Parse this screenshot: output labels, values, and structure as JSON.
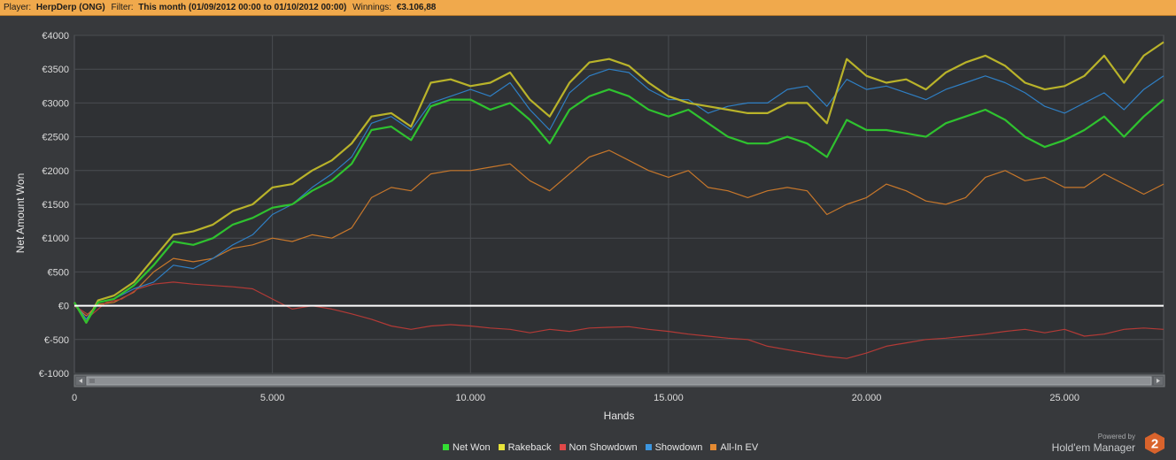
{
  "header": {
    "player_label": "Player:",
    "player_value": "HerpDerp (ONG)",
    "filter_label": "Filter:",
    "filter_value": "This month (01/09/2012 00:00 to 01/10/2012 00:00)",
    "winnings_label": "Winnings:",
    "winnings_value": "€3.106,88"
  },
  "chart_data": {
    "type": "line",
    "xlabel": "Hands",
    "ylabel": "Net Amount Won",
    "xlim": [
      0,
      27500
    ],
    "ylim": [
      -1000,
      4000
    ],
    "xticks": [
      0,
      5000,
      10000,
      15000,
      20000,
      25000
    ],
    "xtick_labels": [
      "0",
      "5.000",
      "10.000",
      "15.000",
      "20.000",
      "25.000"
    ],
    "yticks": [
      4000,
      3500,
      3000,
      2500,
      2000,
      1500,
      1000,
      500,
      0,
      -500,
      -1000
    ],
    "ytick_labels": [
      "€4000",
      "€3500",
      "€3000",
      "€2500",
      "€2000",
      "€1500",
      "€1000",
      "€500",
      "€0",
      "€-500",
      "€-1000"
    ],
    "grid": true,
    "legend_position": "bottom",
    "series": [
      {
        "name": "Net Won",
        "color": "#2fc22f",
        "x": [
          0,
          300,
          600,
          1000,
          1500,
          2000,
          2500,
          3000,
          3500,
          4000,
          4500,
          5000,
          5500,
          6000,
          6500,
          7000,
          7500,
          8000,
          8500,
          9000,
          9500,
          10000,
          10500,
          11000,
          11500,
          12000,
          12500,
          13000,
          13500,
          14000,
          14500,
          15000,
          15500,
          16000,
          16500,
          17000,
          17500,
          18000,
          18500,
          19000,
          19500,
          20000,
          20500,
          21000,
          21500,
          22000,
          22500,
          23000,
          23500,
          24000,
          24500,
          25000,
          25500,
          26000,
          26500,
          27000,
          27500
        ],
        "y": [
          50,
          -250,
          50,
          100,
          300,
          600,
          950,
          900,
          1000,
          1200,
          1300,
          1450,
          1500,
          1700,
          1850,
          2100,
          2600,
          2650,
          2450,
          2950,
          3050,
          3050,
          2900,
          3000,
          2750,
          2400,
          2900,
          3100,
          3200,
          3100,
          2900,
          2800,
          2900,
          2700,
          2500,
          2400,
          2400,
          2500,
          2400,
          2200,
          2750,
          2600,
          2600,
          2550,
          2500,
          2700,
          2800,
          2900,
          2750,
          2500,
          2350,
          2450,
          2600,
          2800,
          2500,
          2800,
          3050
        ]
      },
      {
        "name": "Rakeback",
        "color": "#b9b32a",
        "x": [
          0,
          300,
          600,
          1000,
          1500,
          2000,
          2500,
          3000,
          3500,
          4000,
          4500,
          5000,
          5500,
          6000,
          6500,
          7000,
          7500,
          8000,
          8500,
          9000,
          9500,
          10000,
          10500,
          11000,
          11500,
          12000,
          12500,
          13000,
          13500,
          14000,
          14500,
          15000,
          15500,
          16000,
          16500,
          17000,
          17500,
          18000,
          18500,
          19000,
          19500,
          20000,
          20500,
          21000,
          21500,
          22000,
          22500,
          23000,
          23500,
          24000,
          24500,
          25000,
          25500,
          26000,
          26500,
          27000,
          27500
        ],
        "y": [
          50,
          -250,
          80,
          150,
          350,
          700,
          1050,
          1100,
          1200,
          1400,
          1500,
          1750,
          1800,
          2000,
          2150,
          2400,
          2800,
          2850,
          2650,
          3300,
          3350,
          3250,
          3300,
          3450,
          3050,
          2800,
          3300,
          3600,
          3650,
          3550,
          3300,
          3100,
          3000,
          2950,
          2900,
          2850,
          2850,
          3000,
          3000,
          2700,
          3650,
          3400,
          3300,
          3350,
          3200,
          3450,
          3600,
          3700,
          3550,
          3300,
          3200,
          3250,
          3400,
          3700,
          3300,
          3700,
          3900
        ]
      },
      {
        "name": "Non Showdown",
        "color": "#b33a36",
        "x": [
          0,
          400,
          800,
          1200,
          1600,
          2000,
          2500,
          3000,
          3500,
          4000,
          4500,
          5000,
          5500,
          6000,
          6500,
          7000,
          7500,
          8000,
          8500,
          9000,
          9500,
          10000,
          10500,
          11000,
          11500,
          12000,
          12500,
          13000,
          13500,
          14000,
          14500,
          15000,
          15500,
          16000,
          16500,
          17000,
          17500,
          18000,
          18500,
          19000,
          19500,
          20000,
          20500,
          21000,
          21500,
          22000,
          22500,
          23000,
          23500,
          24000,
          24500,
          25000,
          25500,
          26000,
          26500,
          27000,
          27500
        ],
        "y": [
          0,
          -150,
          50,
          100,
          250,
          320,
          350,
          320,
          300,
          280,
          250,
          100,
          -50,
          0,
          -50,
          -120,
          -200,
          -300,
          -350,
          -300,
          -280,
          -300,
          -330,
          -350,
          -400,
          -350,
          -380,
          -330,
          -320,
          -310,
          -350,
          -380,
          -420,
          -450,
          -480,
          -500,
          -600,
          -650,
          -700,
          -750,
          -780,
          -700,
          -600,
          -550,
          -500,
          -480,
          -450,
          -420,
          -380,
          -350,
          -400,
          -350,
          -450,
          -420,
          -350,
          -330,
          -350
        ]
      },
      {
        "name": "Showdown",
        "color": "#2f7fc4",
        "x": [
          0,
          300,
          600,
          1000,
          1500,
          2000,
          2500,
          3000,
          3500,
          4000,
          4500,
          5000,
          5500,
          6000,
          6500,
          7000,
          7500,
          8000,
          8500,
          9000,
          9500,
          10000,
          10500,
          11000,
          11500,
          12000,
          12500,
          13000,
          13500,
          14000,
          14500,
          15000,
          15500,
          16000,
          16500,
          17000,
          17500,
          18000,
          18500,
          19000,
          19500,
          20000,
          20500,
          21000,
          21500,
          22000,
          22500,
          23000,
          23500,
          24000,
          24500,
          25000,
          25500,
          26000,
          26500,
          27000,
          27500
        ],
        "y": [
          50,
          -200,
          50,
          100,
          250,
          350,
          600,
          550,
          700,
          900,
          1050,
          1350,
          1500,
          1750,
          1950,
          2200,
          2700,
          2800,
          2600,
          3000,
          3100,
          3200,
          3100,
          3300,
          2900,
          2600,
          3150,
          3400,
          3500,
          3450,
          3200,
          3050,
          3050,
          2850,
          2950,
          3000,
          3000,
          3200,
          3250,
          2950,
          3350,
          3200,
          3250,
          3150,
          3050,
          3200,
          3300,
          3400,
          3300,
          3150,
          2950,
          2850,
          3000,
          3150,
          2900,
          3200,
          3400
        ]
      },
      {
        "name": "All-In EV",
        "color": "#c7772b",
        "x": [
          0,
          300,
          600,
          1000,
          1500,
          2000,
          2500,
          3000,
          3500,
          4000,
          4500,
          5000,
          5500,
          6000,
          6500,
          7000,
          7500,
          8000,
          8500,
          9000,
          9500,
          10000,
          10500,
          11000,
          11500,
          12000,
          12500,
          13000,
          13500,
          14000,
          14500,
          15000,
          15500,
          16000,
          16500,
          17000,
          17500,
          18000,
          18500,
          19000,
          19500,
          20000,
          20500,
          21000,
          21500,
          22000,
          22500,
          23000,
          23500,
          24000,
          24500,
          25000,
          25500,
          26000,
          26500,
          27000,
          27500
        ],
        "y": [
          0,
          -150,
          20,
          50,
          200,
          500,
          700,
          650,
          700,
          850,
          900,
          1000,
          950,
          1050,
          1000,
          1150,
          1600,
          1750,
          1700,
          1950,
          2000,
          2000,
          2050,
          2100,
          1850,
          1700,
          1950,
          2200,
          2300,
          2150,
          2000,
          1900,
          2000,
          1750,
          1700,
          1600,
          1700,
          1750,
          1700,
          1350,
          1500,
          1600,
          1800,
          1700,
          1550,
          1500,
          1600,
          1900,
          2000,
          1850,
          1900,
          1750,
          1750,
          1950,
          1800,
          1650,
          1800
        ]
      }
    ]
  },
  "legend": {
    "items": [
      {
        "label": "Net Won",
        "color": "#33dd33"
      },
      {
        "label": "Rakeback",
        "color": "#e8e43a"
      },
      {
        "label": "Non Showdown",
        "color": "#e04848"
      },
      {
        "label": "Showdown",
        "color": "#3c96e0"
      },
      {
        "label": "All-In EV",
        "color": "#e48a32"
      }
    ]
  },
  "branding": {
    "powered_by": "Powered by",
    "product": "Hold'em Manager",
    "logo_number": "2",
    "logo_color": "#d9632c"
  }
}
